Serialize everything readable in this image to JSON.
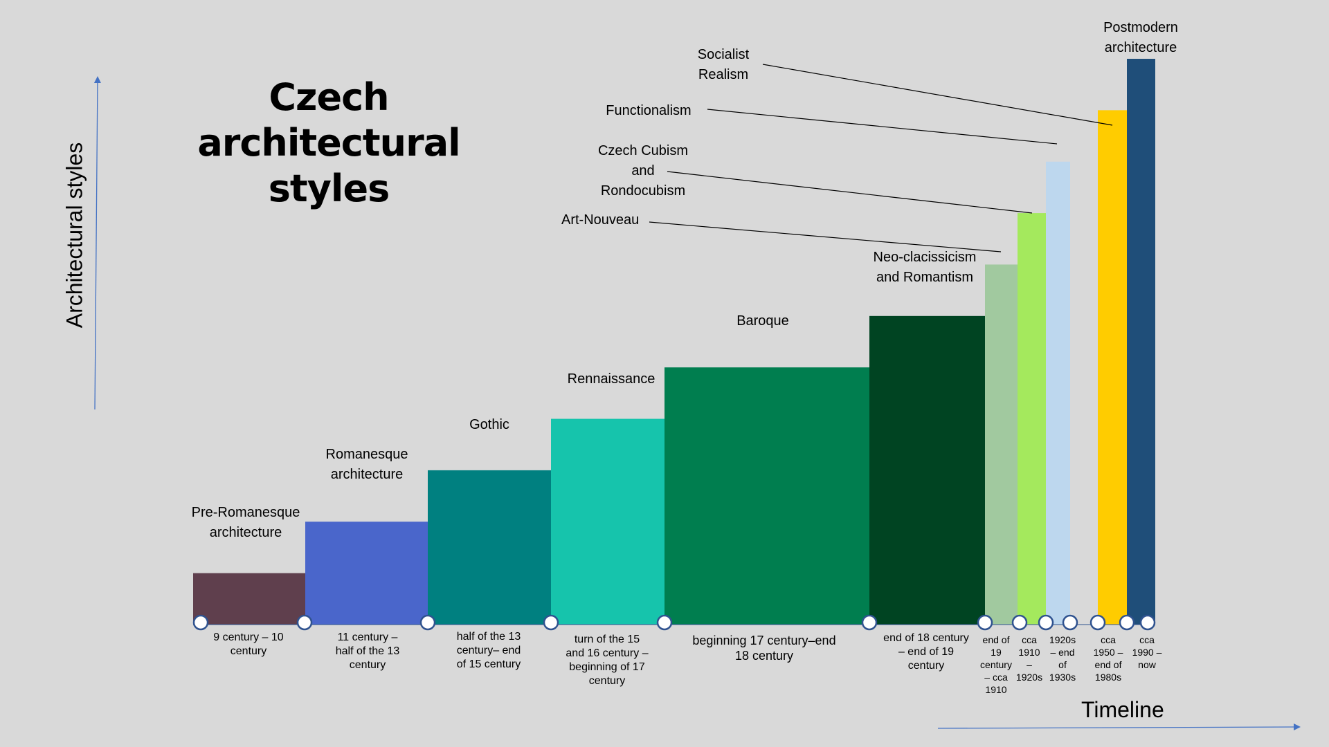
{
  "title": "Czech architectural styles",
  "chart_data": {
    "type": "bar",
    "ylabel": "Architectural styles",
    "xlabel": "Timeline",
    "categories": [
      "Pre-Romanesque architecture",
      "Romanesque architecture",
      "Gothic",
      "Rennaissance",
      "Baroque",
      "Neo-clacissicism and Romantism",
      "Art-Nouveau",
      "Czech Cubism and Rondocubism",
      "Functionalism",
      "Socialist Realism",
      "Postmodern architecture"
    ],
    "periods": [
      "9 century – 10 century",
      "11 century – half of the 13 century",
      "half of the 13 century– end of 15 century",
      "turn of the 15 and 16 century – beginning of 17 century",
      "beginning 17 century–end 18 century",
      "end of 18 century – end of 19 century",
      "end of 19 century – cca 1910",
      "cca 1910 – 1920s",
      "1920s – end of 1930s",
      "cca 1950 – end of 1980s",
      "cca 1990 – now"
    ],
    "values": [
      1,
      2,
      3,
      4,
      5,
      6,
      7,
      8,
      9,
      10,
      11
    ],
    "colors": [
      "#5f3f4d",
      "#4a66cb",
      "#008080",
      "#16c4ac",
      "#007e4f",
      "#004422",
      "#a1c99f",
      "#a4e95d",
      "#bdd7ee",
      "#ffcc00",
      "#1f4e79"
    ],
    "axis_color": "#4472c4",
    "marker_color": "#2f528f",
    "legend": "none",
    "grid": false
  }
}
